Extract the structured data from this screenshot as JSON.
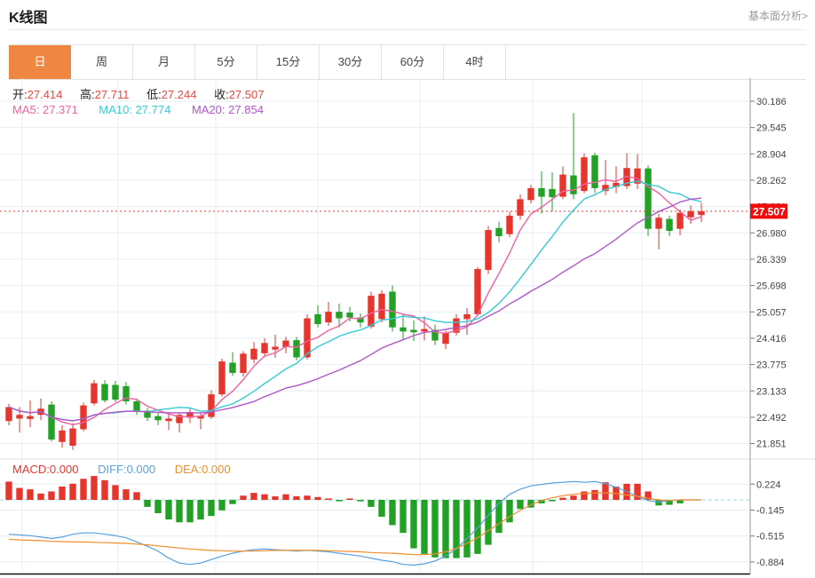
{
  "header": {
    "title": "K线图",
    "link": "基本面分析>"
  },
  "tabs": {
    "items": [
      {
        "label": "日",
        "active": true
      },
      {
        "label": "周",
        "active": false
      },
      {
        "label": "月",
        "active": false
      },
      {
        "label": "5分",
        "active": false
      },
      {
        "label": "15分",
        "active": false
      },
      {
        "label": "30分",
        "active": false
      },
      {
        "label": "60分",
        "active": false
      },
      {
        "label": "4时",
        "active": false
      }
    ]
  },
  "legend": {
    "ohlc": [
      {
        "label": "开:",
        "value": "27.414"
      },
      {
        "label": "高:",
        "value": "27.711"
      },
      {
        "label": "低:",
        "value": "27.244"
      },
      {
        "label": "收:",
        "value": "27.507"
      }
    ],
    "ma": [
      {
        "label": "MA5:",
        "value": "27.371",
        "color_key": "ma5"
      },
      {
        "label": "MA10:",
        "value": "27.774",
        "color_key": "ma10"
      },
      {
        "label": "MA20:",
        "value": "27.854",
        "color_key": "ma20"
      }
    ],
    "macd": [
      {
        "label": "MACD:",
        "value": "0.000",
        "color_key": "up"
      },
      {
        "label": "DIFF:",
        "value": "0.000",
        "color_key": "diff"
      },
      {
        "label": "DEA:",
        "value": "0.000",
        "color_key": "dea"
      }
    ]
  },
  "price_tag": {
    "value": "27.507"
  },
  "colors": {
    "up": "#e5352c",
    "down": "#23a127",
    "accent_tab": "#ef8743",
    "value_red": "#f0443c",
    "ma5": "#f0619e",
    "ma10": "#35cbd6",
    "ma20": "#b155c9",
    "diff": "#58a1de",
    "dea": "#ef8e2b",
    "price_tag_bg": "#ee0d0d",
    "price_line": "#f43131",
    "grid": "#e7edf4",
    "axis": "#999999",
    "tick_text": "#444444",
    "zero_line": "#8fd8e2"
  },
  "chart_data": {
    "type": "candlestick+macd",
    "main": {
      "ylim": [
        21.851,
        30.186
      ],
      "y_ticks": [
        "30.186",
        "29.545",
        "28.904",
        "28.262",
        "27.621",
        "26.980",
        "26.339",
        "25.698",
        "25.057",
        "24.416",
        "23.775",
        "23.133",
        "22.492",
        "21.851"
      ],
      "current_price": 27.507,
      "ma_periods": [
        5,
        10,
        20
      ],
      "candles": [
        [
          22.4,
          22.82,
          22.3,
          22.74
        ],
        [
          22.46,
          22.74,
          22.12,
          22.55
        ],
        [
          22.45,
          22.9,
          22.25,
          22.52
        ],
        [
          22.55,
          22.95,
          22.42,
          22.7
        ],
        [
          22.8,
          22.88,
          21.9,
          21.95
        ],
        [
          21.89,
          22.3,
          21.75,
          22.17
        ],
        [
          21.8,
          22.35,
          21.7,
          22.22
        ],
        [
          22.2,
          22.85,
          22.15,
          22.78
        ],
        [
          22.83,
          23.4,
          22.78,
          23.32
        ],
        [
          23.3,
          23.4,
          22.85,
          22.9
        ],
        [
          23.28,
          23.38,
          22.86,
          22.92
        ],
        [
          23.25,
          23.35,
          22.8,
          22.88
        ],
        [
          22.88,
          22.95,
          22.55,
          22.62
        ],
        [
          22.65,
          22.72,
          22.4,
          22.48
        ],
        [
          22.52,
          22.6,
          22.3,
          22.42
        ],
        [
          22.4,
          22.62,
          22.18,
          22.46
        ],
        [
          22.35,
          22.6,
          22.12,
          22.55
        ],
        [
          22.48,
          22.7,
          22.35,
          22.62
        ],
        [
          22.46,
          22.6,
          22.2,
          22.53
        ],
        [
          22.5,
          23.15,
          22.45,
          23.05
        ],
        [
          23.05,
          23.92,
          23.0,
          23.85
        ],
        [
          23.82,
          24.08,
          23.5,
          23.57
        ],
        [
          23.57,
          24.1,
          23.48,
          24.04
        ],
        [
          23.9,
          24.32,
          23.8,
          24.16
        ],
        [
          24.05,
          24.42,
          23.95,
          24.3
        ],
        [
          24.14,
          24.5,
          23.94,
          24.21
        ],
        [
          24.2,
          24.45,
          24.05,
          24.36
        ],
        [
          24.37,
          24.45,
          23.88,
          23.95
        ],
        [
          23.95,
          25.0,
          23.9,
          24.9
        ],
        [
          25.0,
          25.22,
          24.68,
          24.76
        ],
        [
          24.8,
          25.3,
          24.72,
          25.06
        ],
        [
          25.06,
          25.26,
          24.68,
          24.9
        ],
        [
          25.04,
          25.18,
          24.82,
          24.92
        ],
        [
          24.92,
          25.02,
          24.68,
          24.8
        ],
        [
          24.7,
          25.55,
          24.65,
          25.45
        ],
        [
          24.88,
          25.58,
          24.8,
          25.5
        ],
        [
          25.55,
          25.7,
          24.58,
          24.68
        ],
        [
          24.68,
          25.02,
          24.4,
          24.58
        ],
        [
          24.62,
          24.85,
          24.35,
          24.56
        ],
        [
          24.58,
          24.95,
          24.36,
          24.64
        ],
        [
          24.62,
          24.75,
          24.25,
          24.36
        ],
        [
          24.28,
          24.6,
          24.15,
          24.55
        ],
        [
          24.55,
          25.0,
          24.48,
          24.9
        ],
        [
          24.88,
          25.15,
          24.5,
          25.0
        ],
        [
          25.0,
          26.15,
          24.95,
          26.1
        ],
        [
          26.08,
          27.15,
          25.98,
          27.05
        ],
        [
          27.1,
          27.25,
          26.75,
          26.9
        ],
        [
          26.95,
          27.5,
          26.88,
          27.4
        ],
        [
          27.4,
          27.92,
          27.3,
          27.8
        ],
        [
          27.78,
          28.15,
          27.7,
          28.07
        ],
        [
          28.07,
          28.48,
          27.45,
          27.86
        ],
        [
          28.05,
          28.45,
          27.5,
          27.85
        ],
        [
          27.86,
          28.6,
          27.8,
          28.4
        ],
        [
          28.38,
          29.9,
          27.8,
          27.92
        ],
        [
          28.0,
          28.92,
          27.95,
          28.82
        ],
        [
          28.87,
          28.93,
          27.95,
          28.07
        ],
        [
          28.0,
          28.75,
          27.9,
          28.15
        ],
        [
          28.1,
          28.6,
          27.95,
          28.2
        ],
        [
          28.12,
          28.92,
          28.05,
          28.56
        ],
        [
          28.18,
          28.9,
          28.05,
          28.55
        ],
        [
          28.55,
          28.62,
          26.9,
          27.08
        ],
        [
          27.08,
          27.45,
          26.58,
          27.35
        ],
        [
          27.32,
          27.4,
          26.9,
          27.03
        ],
        [
          27.08,
          27.55,
          26.92,
          27.47
        ],
        [
          27.36,
          27.65,
          27.2,
          27.51
        ],
        [
          27.414,
          27.711,
          27.244,
          27.507
        ]
      ]
    },
    "macd": {
      "y_ticks": [
        "0.224",
        "-0.145",
        "-0.515",
        "-0.884"
      ],
      "hist": [
        0.26,
        0.17,
        0.15,
        0.09,
        0.12,
        0.19,
        0.23,
        0.3,
        0.34,
        0.28,
        0.21,
        0.15,
        0.11,
        -0.1,
        -0.19,
        -0.28,
        -0.32,
        -0.32,
        -0.28,
        -0.23,
        -0.15,
        -0.06,
        0.06,
        0.1,
        0.08,
        0.05,
        0.08,
        0.05,
        0.06,
        0.04,
        0.02,
        -0.02,
        0.02,
        -0.02,
        -0.1,
        -0.24,
        -0.36,
        -0.47,
        -0.69,
        -0.77,
        -0.82,
        -0.83,
        -0.83,
        -0.82,
        -0.77,
        -0.64,
        -0.47,
        -0.32,
        -0.13,
        -0.11,
        -0.05,
        -0.02,
        0.03,
        0.06,
        0.12,
        0.14,
        0.25,
        0.19,
        0.23,
        0.23,
        0.12,
        -0.08,
        -0.07,
        -0.05,
        0.0,
        0.0
      ],
      "diff": [
        -0.49,
        -0.5,
        -0.51,
        -0.53,
        -0.55,
        -0.53,
        -0.49,
        -0.47,
        -0.47,
        -0.49,
        -0.51,
        -0.54,
        -0.6,
        -0.66,
        -0.73,
        -0.83,
        -0.9,
        -0.92,
        -0.9,
        -0.85,
        -0.8,
        -0.76,
        -0.73,
        -0.71,
        -0.7,
        -0.71,
        -0.72,
        -0.73,
        -0.72,
        -0.73,
        -0.74,
        -0.76,
        -0.78,
        -0.8,
        -0.83,
        -0.86,
        -0.88,
        -0.92,
        -0.93,
        -0.91,
        -0.87,
        -0.8,
        -0.7,
        -0.55,
        -0.4,
        -0.22,
        -0.05,
        0.08,
        0.15,
        0.2,
        0.22,
        0.24,
        0.25,
        0.26,
        0.25,
        0.26,
        0.23,
        0.18,
        0.12,
        0.05,
        -0.01,
        -0.03,
        -0.01,
        0.0,
        0.0,
        0.0
      ],
      "dea": [
        -0.56,
        -0.57,
        -0.575,
        -0.58,
        -0.59,
        -0.595,
        -0.6,
        -0.6,
        -0.605,
        -0.61,
        -0.615,
        -0.62,
        -0.63,
        -0.64,
        -0.655,
        -0.67,
        -0.685,
        -0.7,
        -0.71,
        -0.72,
        -0.725,
        -0.73,
        -0.73,
        -0.73,
        -0.725,
        -0.72,
        -0.72,
        -0.72,
        -0.72,
        -0.72,
        -0.725,
        -0.73,
        -0.735,
        -0.74,
        -0.75,
        -0.755,
        -0.76,
        -0.77,
        -0.78,
        -0.78,
        -0.77,
        -0.74,
        -0.69,
        -0.62,
        -0.54,
        -0.44,
        -0.34,
        -0.24,
        -0.15,
        -0.07,
        -0.01,
        0.03,
        0.06,
        0.08,
        0.09,
        0.1,
        0.1,
        0.09,
        0.07,
        0.05,
        0.02,
        0.0,
        -0.01,
        0.0,
        0.0,
        0.0
      ]
    }
  }
}
